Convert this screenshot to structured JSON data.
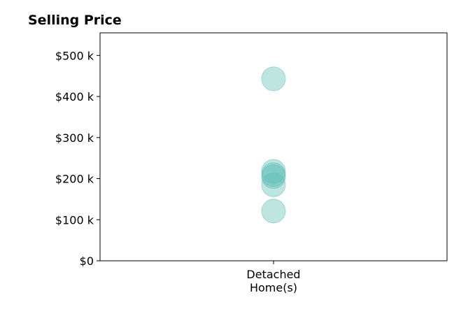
{
  "chart_data": {
    "type": "scatter",
    "title": "Selling Price",
    "xlabel": "",
    "ylabel": "",
    "categories": [
      "Detached\nHome(s)"
    ],
    "category_lines": [
      "Detached",
      "Home(s)"
    ],
    "y_ticks": [
      {
        "value": 0,
        "label": "$0"
      },
      {
        "value": 100000,
        "label": "$100 k"
      },
      {
        "value": 200000,
        "label": "$200 k"
      },
      {
        "value": 300000,
        "label": "$300 k"
      },
      {
        "value": 400000,
        "label": "$400 k"
      },
      {
        "value": 500000,
        "label": "$500 k"
      }
    ],
    "ylim": [
      0,
      555000
    ],
    "grid": false,
    "series": [
      {
        "category": "Detached\nHome(s)",
        "values": [
          443000,
          218000,
          210000,
          205000,
          185000,
          121000
        ]
      }
    ],
    "point_color": "#5fbfb5",
    "point_opacity": 0.4
  }
}
